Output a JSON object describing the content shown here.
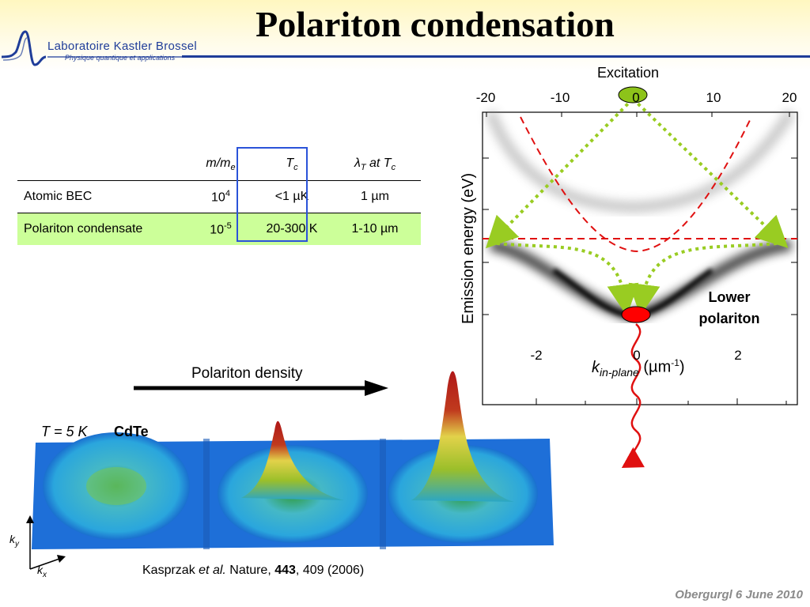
{
  "slide": {
    "title": "Polariton condensation",
    "footer": "Obergurgl 6 June 2010"
  },
  "logo": {
    "name": "Laboratoire Kastler Brossel",
    "subtitle": "Physique quantique et applications"
  },
  "table": {
    "headers": [
      "m/me",
      "Tc",
      "λT at Tc"
    ],
    "rows": [
      {
        "label": "Atomic BEC",
        "mass": "10^4",
        "tc": "<1 µK",
        "lambda": "1 µm"
      },
      {
        "label": "Polariton condensate",
        "mass": "10^-5",
        "tc": "20-300 K",
        "lambda": "1-10 µm"
      }
    ]
  },
  "dispersion": {
    "excitation_label": "Excitation",
    "top_axis_ticks": [
      "-20",
      "-10",
      "0",
      "10",
      "20"
    ],
    "bottom_axis_ticks": [
      "-2",
      "0",
      "2"
    ],
    "xlabel": "kin-plane (µm-1)",
    "ylabel": "Emission energy (eV)",
    "lower_label_line1": "Lower",
    "lower_label_line2": "polariton",
    "colors": {
      "excitation": "#8dc31a",
      "lower": "#ff0000",
      "guides": "#e01010",
      "arrows": "#99cc22"
    }
  },
  "density": {
    "arrow_label": "Polariton density",
    "temperature": "T = 5 K",
    "material": "CdTe",
    "axis_y": "ky",
    "axis_x": "kx"
  },
  "reference": {
    "authors": "Kasprzak",
    "etal": "et al.",
    "journal": "Nature,",
    "volume": "443",
    "pages": ", 409 (2006)"
  }
}
